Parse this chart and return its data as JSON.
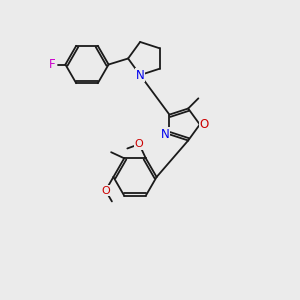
{
  "bg_color": "#ebebeb",
  "bond_color": "#1a1a1a",
  "atom_colors": {
    "N": "#0000ee",
    "O": "#cc0000",
    "F": "#cc00cc"
  },
  "bond_lw": 1.3,
  "font_size": 8.5,
  "xlim": [
    0,
    10
  ],
  "ylim": [
    0,
    10
  ]
}
